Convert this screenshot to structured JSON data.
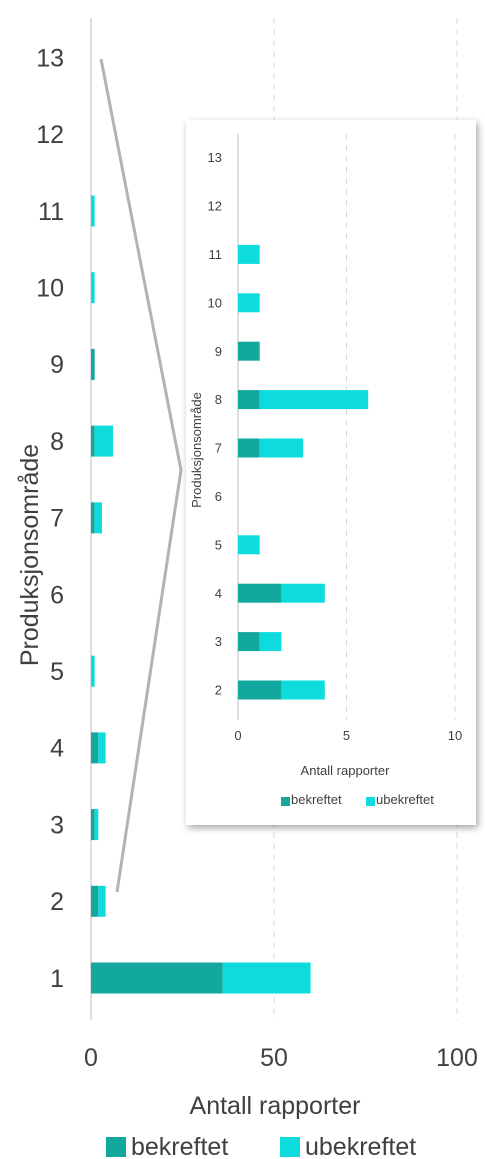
{
  "colors": {
    "bekreftet": "#13A89E",
    "ubekreftet": "#0EDCDC",
    "axis": "#C8C8C8",
    "grid": "#D9D9D9",
    "text": "#404040",
    "connector": "#B3B3B3"
  },
  "chart_data": [
    {
      "type": "bar",
      "orientation": "horizontal",
      "stacked": true,
      "categories": [
        "1",
        "2",
        "3",
        "4",
        "5",
        "6",
        "7",
        "8",
        "9",
        "10",
        "11",
        "12",
        "13"
      ],
      "series": [
        {
          "name": "bekreftet",
          "values": [
            36,
            2,
            1,
            2,
            0,
            0,
            1,
            1,
            1,
            0,
            0,
            0,
            0
          ]
        },
        {
          "name": "ubekreftet",
          "values": [
            24,
            2,
            1,
            2,
            1,
            0,
            2,
            5,
            0,
            1,
            1,
            0,
            0
          ]
        }
      ],
      "xlabel": "Antall rapporter",
      "ylabel": "Produksjonsområde",
      "xlim": [
        0,
        100
      ],
      "xticks": [
        "0",
        "50",
        "100"
      ],
      "grid": "vertical dashed",
      "legend": "bottom"
    },
    {
      "type": "bar",
      "orientation": "horizontal",
      "stacked": true,
      "categories": [
        "2",
        "3",
        "4",
        "5",
        "6",
        "7",
        "8",
        "9",
        "10",
        "11",
        "12",
        "13"
      ],
      "series": [
        {
          "name": "bekreftet",
          "values": [
            2,
            1,
            2,
            0,
            0,
            1,
            1,
            1,
            0,
            0,
            0,
            0
          ]
        },
        {
          "name": "ubekreftet",
          "values": [
            2,
            1,
            2,
            1,
            0,
            2,
            5,
            0,
            1,
            1,
            0,
            0
          ]
        }
      ],
      "xlabel": "Antall rapporter",
      "ylabel": "Produksjonsområde",
      "xlim": [
        0,
        10
      ],
      "xticks": [
        "0",
        "5",
        "10"
      ],
      "grid": "vertical dashed",
      "legend": "bottom"
    }
  ]
}
